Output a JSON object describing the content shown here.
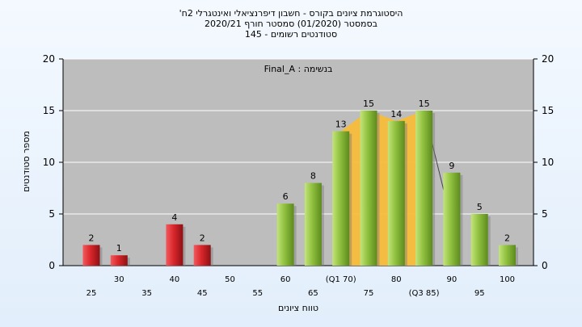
{
  "chart_data": {
    "type": "bar",
    "title_lines": [
      "'היסטוגרמת ציונים בקורס - חשבון דיפרנציאלי ואינטגרלי 2ח",
      "בסמסטר  (01/2020)  סמסטר חורף  2020/21",
      "סטודנטים רשומים - 145"
    ],
    "legend_text": "Final_A : בנשימה",
    "ylabel": "מספר סטודנטים",
    "xlabel": "טווח ציונים",
    "ylim": [
      0,
      20
    ],
    "yticks": [
      0,
      5,
      10,
      15,
      20
    ],
    "x_ticks_row1": [
      "30",
      "40",
      "50",
      "60",
      "(Q1 70)",
      "80",
      "90",
      "100"
    ],
    "x_ticks_row2": [
      "25",
      "35",
      "45",
      "55",
      "65",
      "75",
      "(Q3 85)",
      "95"
    ],
    "categories": [
      25,
      30,
      35,
      40,
      45,
      50,
      55,
      60,
      65,
      70,
      75,
      80,
      85,
      90,
      95,
      100
    ],
    "values": [
      2,
      1,
      0,
      4,
      2,
      0,
      0,
      6,
      8,
      13,
      15,
      14,
      15,
      9,
      5,
      2
    ],
    "fail_threshold": 55,
    "colors": {
      "fail": "#d9262b",
      "pass": "#8fc03e",
      "band": "#f7bd3b",
      "plot_bg": "#bdbdbd",
      "grid": "#ffffff"
    }
  }
}
